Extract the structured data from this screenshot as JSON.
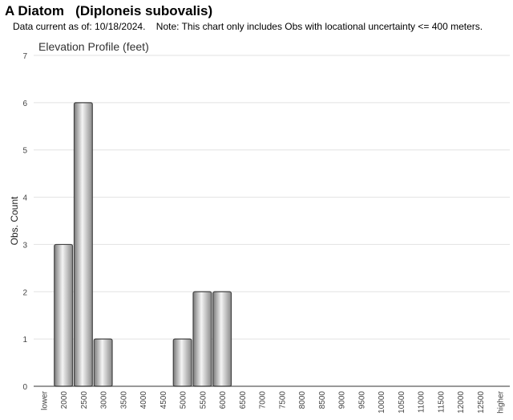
{
  "header": {
    "title": "A Diatom   (Diploneis subovalis)",
    "subtitle": "Data current as of: 10/18/2024.    Note: This chart only includes Obs with locational uncertainty <= 400 meters."
  },
  "chart_data": {
    "type": "bar",
    "title": "Elevation Profile (feet)",
    "xlabel": "",
    "ylabel": "Obs. Count",
    "ylim": [
      0,
      7
    ],
    "yticks": [
      0,
      1,
      2,
      3,
      4,
      5,
      6,
      7
    ],
    "grid": true,
    "legend": "none",
    "bar_color": "#b0b0b0",
    "categories": [
      "lower",
      "2000",
      "2500",
      "3000",
      "3500",
      "4000",
      "4500",
      "5000",
      "5500",
      "6000",
      "6500",
      "7000",
      "7500",
      "8000",
      "8500",
      "9000",
      "9500",
      "10000",
      "10500",
      "11000",
      "11500",
      "12000",
      "12500",
      "higher"
    ],
    "values": [
      0,
      3,
      6,
      1,
      0,
      0,
      0,
      1,
      2,
      2,
      0,
      0,
      0,
      0,
      0,
      0,
      0,
      0,
      0,
      0,
      0,
      0,
      0,
      0
    ]
  }
}
